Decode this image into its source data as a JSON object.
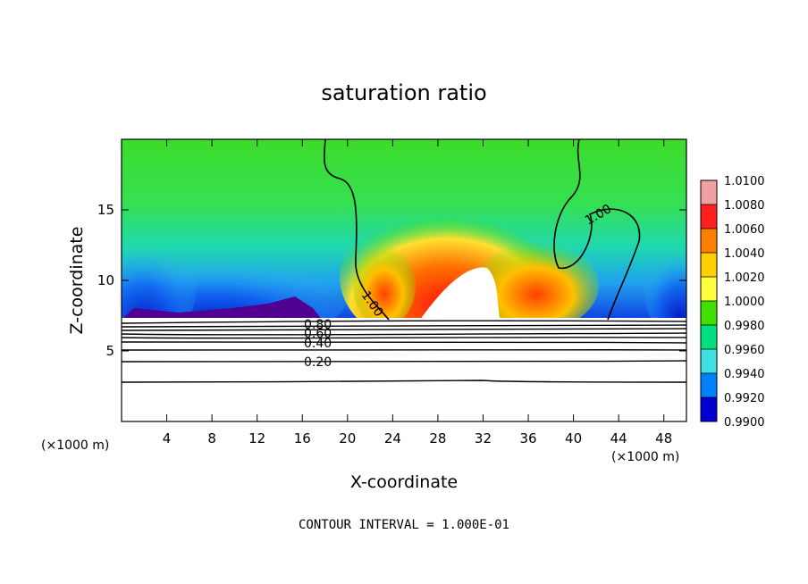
{
  "chart_data": {
    "type": "heatmap",
    "title": "saturation ratio",
    "xlabel": "X-coordinate",
    "ylabel": "Z-coordinate",
    "x_unit": "(×1000 m)",
    "x_unit_right": "(×1000 m)",
    "xlim": [
      0,
      50
    ],
    "ylim": [
      0,
      20
    ],
    "x_ticks": [
      "4",
      "8",
      "12",
      "16",
      "20",
      "24",
      "28",
      "32",
      "36",
      "40",
      "44",
      "48"
    ],
    "x_tick_values": [
      4,
      8,
      12,
      16,
      20,
      24,
      28,
      32,
      36,
      40,
      44,
      48
    ],
    "y_ticks": [
      "5",
      "10",
      "15"
    ],
    "y_tick_values": [
      5,
      10,
      15
    ],
    "colorbar": {
      "labels": [
        "1.0100",
        "1.0080",
        "1.0060",
        "1.0040",
        "1.0020",
        "1.0000",
        "0.9980",
        "0.9960",
        "0.9940",
        "0.9920",
        "0.9900"
      ],
      "colors": [
        "#f0a0a0",
        "#ff2020",
        "#ff8000",
        "#ffd000",
        "#ffff40",
        "#40e000",
        "#00e080",
        "#40e0e0",
        "#0080ff",
        "#0000d0",
        "#500090"
      ]
    },
    "contour_labels": [
      {
        "text": "1.00"
      },
      {
        "text": "1.00"
      },
      {
        "text": "0.80"
      },
      {
        "text": "0.60"
      },
      {
        "text": "0.40"
      },
      {
        "text": "0.20"
      }
    ],
    "contour_interval_text": "CONTOUR INTERVAL = 1.000E-01"
  }
}
